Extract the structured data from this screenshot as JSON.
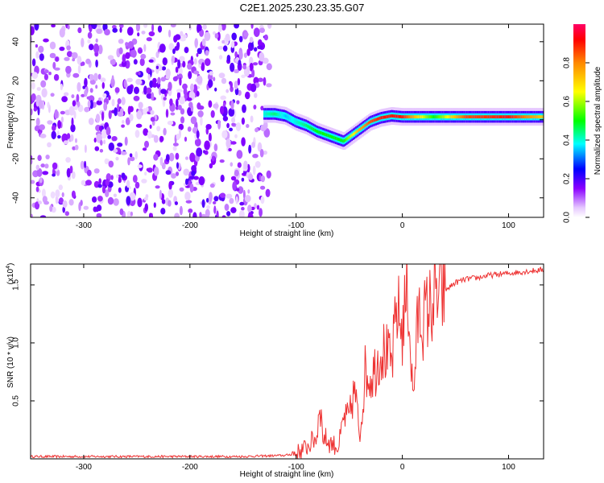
{
  "title": "C2E1.2025.230.23.35.G07",
  "chart_data": [
    {
      "type": "heatmap",
      "xlabel": "Height of straight line (km)",
      "ylabel": "Frequency (Hz)",
      "xlim": [
        -350,
        133
      ],
      "ylim": [
        -50,
        49
      ],
      "xticks": [
        -300,
        -200,
        -100,
        0,
        100
      ],
      "yticks": [
        -40,
        -20,
        0,
        20,
        40
      ],
      "colorbar": {
        "label": "Normalized spectral amplitude",
        "range": [
          0,
          1
        ],
        "ticks": [
          "0.0",
          "0.2",
          "0.4",
          "0.6",
          "0.8"
        ]
      },
      "noise_region_x": [
        -350,
        -125
      ],
      "signal_trace": {
        "x": [
          -130,
          -120,
          -110,
          -100,
          -90,
          -80,
          -70,
          -60,
          -55,
          -50,
          -40,
          -30,
          -20,
          -10,
          0,
          10,
          30,
          60,
          100,
          133
        ],
        "frequency": [
          3,
          3,
          2,
          -1,
          -3,
          -6,
          -8,
          -10,
          -11,
          -9,
          -5,
          -1,
          1,
          2,
          1.5,
          1.5,
          1.5,
          1.5,
          1.5,
          1.5
        ],
        "amplitude": [
          0.4,
          0.45,
          0.35,
          0.4,
          0.45,
          0.5,
          0.5,
          0.5,
          0.5,
          0.6,
          0.75,
          0.85,
          0.9,
          0.9,
          0.9,
          0.75,
          0.5,
          0.85,
          0.9,
          0.7
        ]
      }
    },
    {
      "type": "line",
      "xlabel": "Height of straight line (km)",
      "ylabel": "SNR (10 * v/v)",
      "y_multiplier": "(x10",
      "y_multiplier_exp": "4",
      "xlim": [
        -350,
        133
      ],
      "ylim": [
        0,
        1.68
      ],
      "xticks": [
        -300,
        -200,
        -100,
        0,
        100
      ],
      "yticks": [
        "0.5",
        "1.0",
        "1.5"
      ],
      "series": [
        {
          "color": "#ee3333",
          "x": [
            -350,
            -300,
            -200,
            -150,
            -110,
            -100,
            -90,
            -80,
            -78,
            -75,
            -70,
            -60,
            -55,
            -50,
            -45,
            -40,
            -35,
            -30,
            -25,
            -20,
            -15,
            -10,
            -5,
            0,
            5,
            10,
            15,
            20,
            25,
            30,
            35,
            40,
            50,
            60,
            70,
            80,
            90,
            100,
            110,
            120,
            133
          ],
          "values": [
            0.02,
            0.02,
            0.02,
            0.02,
            0.03,
            0.05,
            0.1,
            0.2,
            0.55,
            0.2,
            0.15,
            0.1,
            0.35,
            0.35,
            0.6,
            0.2,
            0.75,
            0.7,
            0.8,
            0.95,
            0.9,
            0.8,
            1.3,
            1.1,
            1.5,
            0.5,
            1.25,
            1.2,
            1.3,
            1.35,
            1.4,
            1.45,
            1.52,
            1.55,
            1.56,
            1.58,
            1.59,
            1.6,
            1.61,
            1.62,
            1.63
          ]
        }
      ]
    }
  ]
}
